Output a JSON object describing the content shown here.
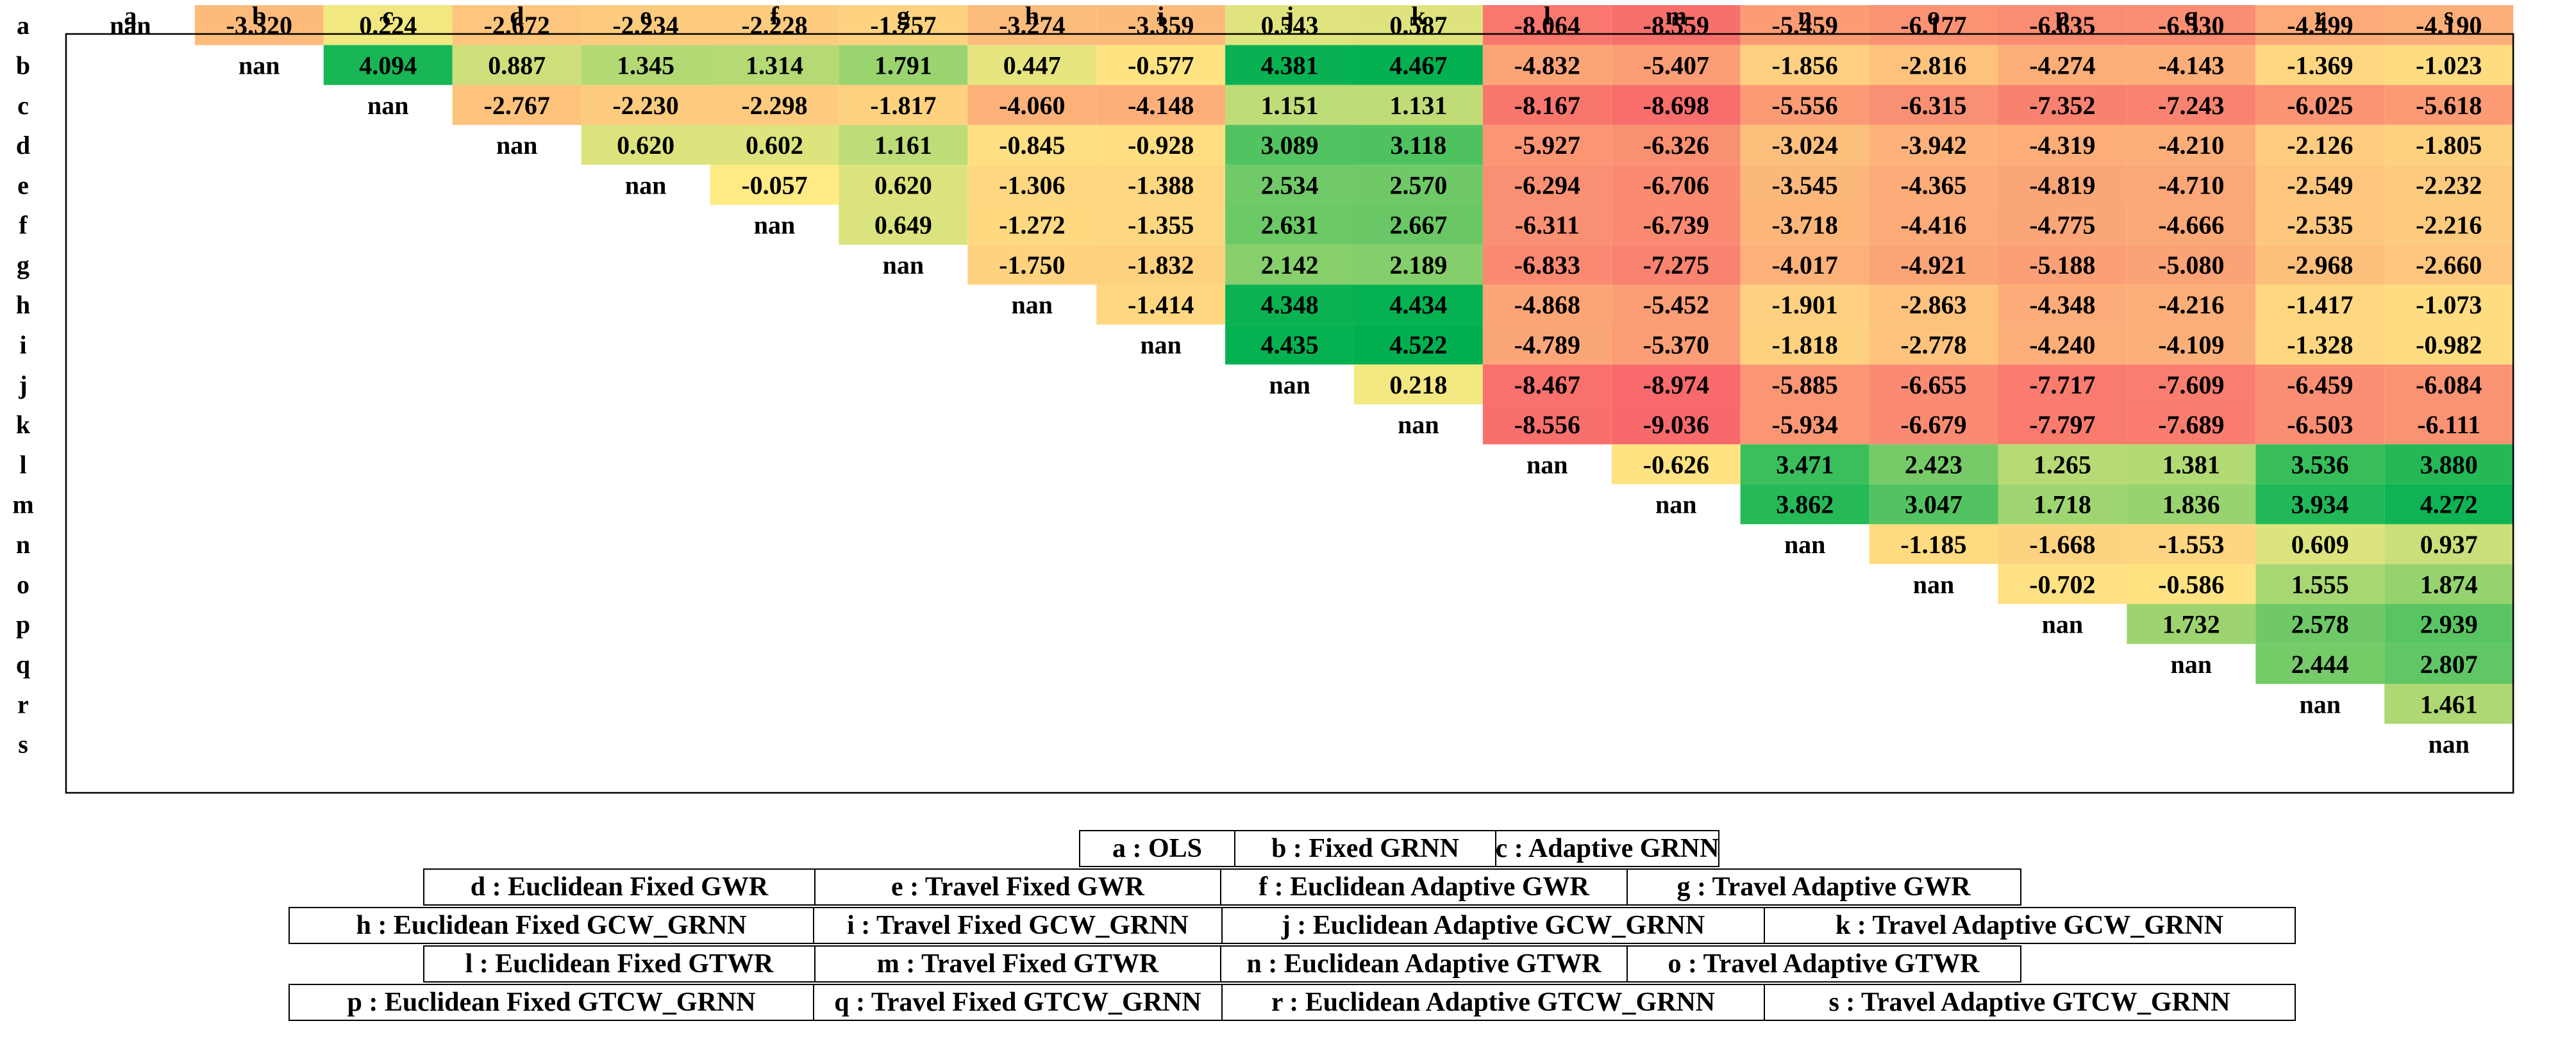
{
  "chart_data": {
    "type": "heatmap",
    "title": "",
    "labels": [
      "a",
      "b",
      "c",
      "d",
      "e",
      "f",
      "g",
      "h",
      "i",
      "j",
      "k",
      "l",
      "m",
      "n",
      "o",
      "p",
      "q",
      "r",
      "s"
    ],
    "matrix": [
      [
        "nan",
        "-3.320",
        "0.224",
        "-2.672",
        "-2.234",
        "-2.228",
        "-1.757",
        "-3.274",
        "-3.359",
        "0.543",
        "0.587",
        "-8.064",
        "-8.559",
        "-5.459",
        "-6.177",
        "-6.635",
        "-6.530",
        "-4.499",
        "-4.190"
      ],
      [
        null,
        "nan",
        "4.094",
        "0.887",
        "1.345",
        "1.314",
        "1.791",
        "0.447",
        "-0.577",
        "4.381",
        "4.467",
        "-4.832",
        "-5.407",
        "-1.856",
        "-2.816",
        "-4.274",
        "-4.143",
        "-1.369",
        "-1.023"
      ],
      [
        null,
        null,
        "nan",
        "-2.767",
        "-2.230",
        "-2.298",
        "-1.817",
        "-4.060",
        "-4.148",
        "1.151",
        "1.131",
        "-8.167",
        "-8.698",
        "-5.556",
        "-6.315",
        "-7.352",
        "-7.243",
        "-6.025",
        "-5.618"
      ],
      [
        null,
        null,
        null,
        "nan",
        "0.620",
        "0.602",
        "1.161",
        "-0.845",
        "-0.928",
        "3.089",
        "3.118",
        "-5.927",
        "-6.326",
        "-3.024",
        "-3.942",
        "-4.319",
        "-4.210",
        "-2.126",
        "-1.805"
      ],
      [
        null,
        null,
        null,
        null,
        "nan",
        "-0.057",
        "0.620",
        "-1.306",
        "-1.388",
        "2.534",
        "2.570",
        "-6.294",
        "-6.706",
        "-3.545",
        "-4.365",
        "-4.819",
        "-4.710",
        "-2.549",
        "-2.232"
      ],
      [
        null,
        null,
        null,
        null,
        null,
        "nan",
        "0.649",
        "-1.272",
        "-1.355",
        "2.631",
        "2.667",
        "-6.311",
        "-6.739",
        "-3.718",
        "-4.416",
        "-4.775",
        "-4.666",
        "-2.535",
        "-2.216"
      ],
      [
        null,
        null,
        null,
        null,
        null,
        null,
        "nan",
        "-1.750",
        "-1.832",
        "2.142",
        "2.189",
        "-6.833",
        "-7.275",
        "-4.017",
        "-4.921",
        "-5.188",
        "-5.080",
        "-2.968",
        "-2.660"
      ],
      [
        null,
        null,
        null,
        null,
        null,
        null,
        null,
        "nan",
        "-1.414",
        "4.348",
        "4.434",
        "-4.868",
        "-5.452",
        "-1.901",
        "-2.863",
        "-4.348",
        "-4.216",
        "-1.417",
        "-1.073"
      ],
      [
        null,
        null,
        null,
        null,
        null,
        null,
        null,
        null,
        "nan",
        "4.435",
        "4.522",
        "-4.789",
        "-5.370",
        "-1.818",
        "-2.778",
        "-4.240",
        "-4.109",
        "-1.328",
        "-0.982"
      ],
      [
        null,
        null,
        null,
        null,
        null,
        null,
        null,
        null,
        null,
        "nan",
        "0.218",
        "-8.467",
        "-8.974",
        "-5.885",
        "-6.655",
        "-7.717",
        "-7.609",
        "-6.459",
        "-6.084"
      ],
      [
        null,
        null,
        null,
        null,
        null,
        null,
        null,
        null,
        null,
        null,
        "nan",
        "-8.556",
        "-9.036",
        "-5.934",
        "-6.679",
        "-7.797",
        "-7.689",
        "-6.503",
        "-6.111"
      ],
      [
        null,
        null,
        null,
        null,
        null,
        null,
        null,
        null,
        null,
        null,
        null,
        "nan",
        "-0.626",
        "3.471",
        "2.423",
        "1.265",
        "1.381",
        "3.536",
        "3.880"
      ],
      [
        null,
        null,
        null,
        null,
        null,
        null,
        null,
        null,
        null,
        null,
        null,
        null,
        "nan",
        "3.862",
        "3.047",
        "1.718",
        "1.836",
        "3.934",
        "4.272"
      ],
      [
        null,
        null,
        null,
        null,
        null,
        null,
        null,
        null,
        null,
        null,
        null,
        null,
        null,
        "nan",
        "-1.185",
        "-1.668",
        "-1.553",
        "0.609",
        "0.937"
      ],
      [
        null,
        null,
        null,
        null,
        null,
        null,
        null,
        null,
        null,
        null,
        null,
        null,
        null,
        null,
        "nan",
        "-0.702",
        "-0.586",
        "1.555",
        "1.874"
      ],
      [
        null,
        null,
        null,
        null,
        null,
        null,
        null,
        null,
        null,
        null,
        null,
        null,
        null,
        null,
        null,
        "nan",
        "1.732",
        "2.578",
        "2.939"
      ],
      [
        null,
        null,
        null,
        null,
        null,
        null,
        null,
        null,
        null,
        null,
        null,
        null,
        null,
        null,
        null,
        null,
        "nan",
        "2.444",
        "2.807"
      ],
      [
        null,
        null,
        null,
        null,
        null,
        null,
        null,
        null,
        null,
        null,
        null,
        null,
        null,
        null,
        null,
        null,
        null,
        "nan",
        "1.461"
      ],
      [
        null,
        null,
        null,
        null,
        null,
        null,
        null,
        null,
        null,
        null,
        null,
        null,
        null,
        null,
        null,
        null,
        null,
        null,
        "nan"
      ]
    ],
    "color_scale": {
      "min": -9.036,
      "mid": 0,
      "max": 4.522,
      "low_color": "#f8696b",
      "mid_color": "#ffeb84",
      "high_color": "#00b050"
    },
    "legend_rows": [
      [
        "a : OLS",
        "b : Fixed GRNN",
        "c : Adaptive GRNN"
      ],
      [
        "d : Euclidean Fixed GWR",
        "e : Travel Fixed GWR",
        "f : Euclidean Adaptive GWR",
        "g : Travel Adaptive GWR"
      ],
      [
        "h : Euclidean Fixed GCW_GRNN",
        "i : Travel Fixed GCW_GRNN",
        "j : Euclidean Adaptive GCW_GRNN",
        "k : Travel Adaptive GCW_GRNN"
      ],
      [
        "l : Euclidean Fixed GTWR",
        "m : Travel Fixed GTWR",
        "n : Euclidean Adaptive GTWR",
        "o : Travel Adaptive GTWR"
      ],
      [
        "p : Euclidean Fixed GTCW_GRNN",
        "q : Travel Fixed GTCW_GRNN",
        "r : Euclidean Adaptive GTCW_GRNN",
        "s : Travel Adaptive GTCW_GRNN"
      ]
    ]
  }
}
